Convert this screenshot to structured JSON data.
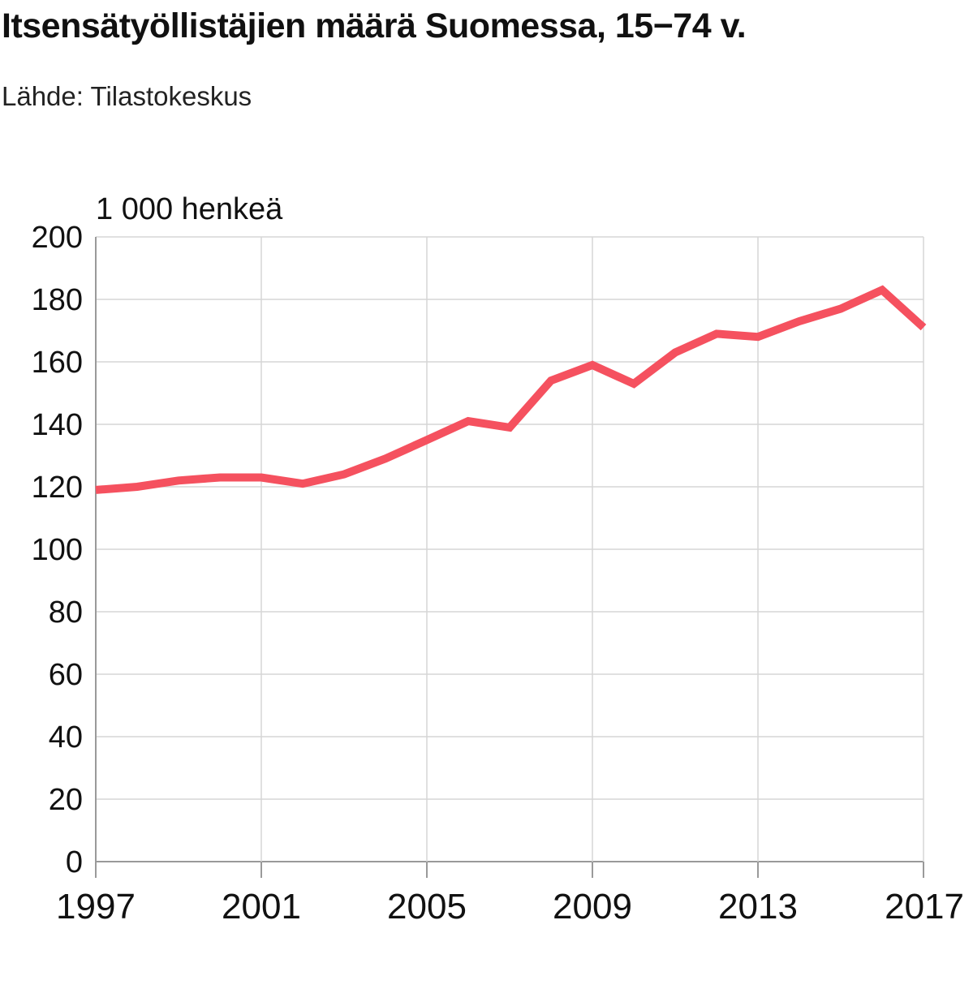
{
  "title": "Itsensätyöllistäjien määrä Suomessa, 15−74 v.",
  "source": "Lähde: Tilastokeskus",
  "chart_data": {
    "type": "line",
    "title": "Itsensätyöllistäjien määrä Suomessa, 15−74 v.",
    "ylabel": "1 000 henkeä",
    "xlabel": "",
    "x": [
      1997,
      1998,
      1999,
      2000,
      2001,
      2002,
      2003,
      2004,
      2005,
      2006,
      2007,
      2008,
      2009,
      2010,
      2011,
      2012,
      2013,
      2014,
      2015,
      2016,
      2017
    ],
    "series": [
      {
        "values": [
          119,
          120,
          122,
          123,
          123,
          121,
          124,
          129,
          135,
          141,
          139,
          154,
          159,
          153,
          163,
          169,
          168,
          173,
          177,
          183,
          171
        ],
        "color": "#f5515f"
      }
    ],
    "xlim": [
      1997,
      2017
    ],
    "ylim": [
      0,
      200
    ],
    "x_ticks": [
      "1997",
      "2001",
      "2005",
      "2009",
      "2013",
      "2017"
    ],
    "y_ticks": [
      "0",
      "20",
      "40",
      "60",
      "80",
      "100",
      "120",
      "140",
      "160",
      "180",
      "200"
    ],
    "grid": true,
    "legend": "none"
  }
}
